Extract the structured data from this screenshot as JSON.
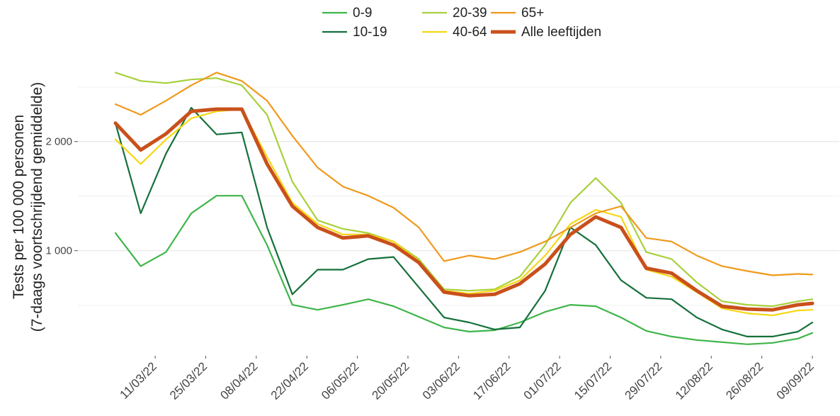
{
  "chart_data": {
    "type": "line",
    "y_label": [
      "Tests per 100 000 personen",
      "(7-daags voortschrijdend gemiddelde)"
    ],
    "x": [
      "28/02/22",
      "07/03/22",
      "14/03/22",
      "21/03/22",
      "28/03/22",
      "04/04/22",
      "11/04/22",
      "18/04/22",
      "25/04/22",
      "02/05/22",
      "09/05/22",
      "16/05/22",
      "23/05/22",
      "30/05/22",
      "06/06/22",
      "13/06/22",
      "20/06/22",
      "27/06/22",
      "04/07/22",
      "11/07/22",
      "18/07/22",
      "25/07/22",
      "01/08/22",
      "08/08/22",
      "15/08/22",
      "22/08/22",
      "29/08/22",
      "05/09/22",
      "09/09/22"
    ],
    "xlim": [
      "28/02/22",
      "09/09/22"
    ],
    "xticks": [
      "11/03/22",
      "25/03/22",
      "08/04/22",
      "22/04/22",
      "06/05/22",
      "20/05/22",
      "03/06/22",
      "17/06/22",
      "01/07/22",
      "15/07/22",
      "29/07/22",
      "12/08/22",
      "26/08/22",
      "09/09/22"
    ],
    "ylim": [
      50,
      2680
    ],
    "yticks": [
      {
        "value": 1000,
        "label": "1 000"
      },
      {
        "value": 2000,
        "label": "2 000"
      }
    ],
    "minor_gridlines": [
      500,
      1500,
      2500
    ],
    "grid": true,
    "legend_position": "top",
    "series": [
      {
        "name": "0-9",
        "color": "#3fb54a",
        "width": 2.2,
        "values": [
          1162,
          858,
          987,
          1342,
          1503,
          1503,
          1052,
          504,
          458,
          504,
          555,
          491,
          394,
          297,
          258,
          271,
          342,
          439,
          504,
          491,
          388,
          265,
          213,
          181,
          162,
          142,
          155,
          194,
          246
        ]
      },
      {
        "name": "10-19",
        "color": "#15703a",
        "width": 2.2,
        "values": [
          2168,
          1342,
          1890,
          2310,
          2065,
          2084,
          1213,
          600,
          826,
          826,
          923,
          942,
          665,
          388,
          342,
          278,
          297,
          633,
          1213,
          1052,
          729,
          568,
          555,
          388,
          278,
          213,
          213,
          258,
          342
        ]
      },
      {
        "name": "20-39",
        "color": "#a8d03c",
        "width": 2.2,
        "values": [
          2632,
          2555,
          2535,
          2568,
          2581,
          2516,
          2245,
          1632,
          1278,
          1200,
          1162,
          1084,
          923,
          646,
          633,
          646,
          762,
          1052,
          1439,
          1665,
          1439,
          987,
          923,
          710,
          536,
          504,
          491,
          536,
          555
        ]
      },
      {
        "name": "40-64",
        "color": "#f6d714",
        "width": 2.2,
        "values": [
          2019,
          1794,
          2019,
          2213,
          2277,
          2297,
          1858,
          1439,
          1245,
          1149,
          1149,
          1084,
          904,
          633,
          607,
          633,
          729,
          955,
          1245,
          1374,
          1310,
          826,
          762,
          620,
          471,
          426,
          407,
          452,
          458
        ]
      },
      {
        "name": "65+",
        "color": "#f0991c",
        "width": 2.2,
        "values": [
          2342,
          2245,
          2374,
          2516,
          2632,
          2555,
          2374,
          2052,
          1761,
          1587,
          1503,
          1394,
          1213,
          904,
          955,
          923,
          987,
          1084,
          1213,
          1342,
          1407,
          1116,
          1084,
          955,
          858,
          813,
          774,
          787,
          781
        ]
      },
      {
        "name": "Alle leeftijden",
        "color": "#c9501b",
        "width": 5,
        "values": [
          2168,
          1923,
          2071,
          2277,
          2297,
          2297,
          1794,
          1407,
          1213,
          1116,
          1136,
          1052,
          891,
          620,
          587,
          600,
          697,
          878,
          1149,
          1310,
          1213,
          839,
          794,
          633,
          491,
          465,
          458,
          504,
          517
        ]
      }
    ]
  }
}
